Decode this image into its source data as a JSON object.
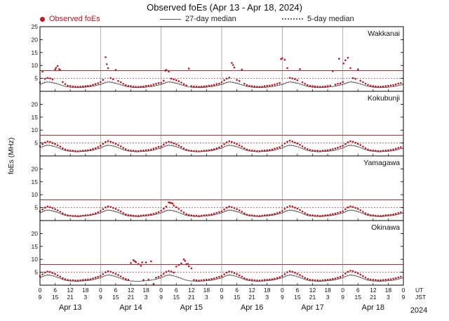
{
  "title": "Observed foEs (Apr 13 - Apr 18, 2024)",
  "legend": {
    "observed": "Observed foEs",
    "median27": "27-day median",
    "median5": "5-day median"
  },
  "y_axis": {
    "label": "foEs (MHz)",
    "min": 0,
    "max": 25,
    "ticks": [
      5,
      10,
      15,
      20,
      25
    ]
  },
  "x_axis": {
    "hours_per_day": 24,
    "minor_tick_hours": 6,
    "day_ticks_ut": [
      "0",
      "6",
      "12",
      "18"
    ],
    "day_ticks_jst": [
      "9",
      "15",
      "21",
      "3"
    ],
    "end_tick_ut": "0",
    "end_tick_jst": "9",
    "ut_label": "UT",
    "jst_label": "JST",
    "dates": [
      "Apr 13",
      "Apr 14",
      "Apr 15",
      "Apr 16",
      "Apr 17",
      "Apr 18"
    ],
    "year": "2024"
  },
  "colors": {
    "observed": "#c41420",
    "median27": "#333333",
    "median5": "#555555",
    "threshold_solid": "#aa3333",
    "threshold_dotted": "#cc2222",
    "grid": "#999999",
    "axis": "#000000"
  },
  "chart_data": {
    "type": "scatter",
    "title": "Observed foEs (Apr 13 - Apr 18, 2024)",
    "ylabel": "foEs (MHz)",
    "ylim": [
      0,
      25
    ],
    "xlim_hours": [
      0,
      144
    ],
    "time_start_ut": "Apr 13 00:00 UT",
    "thresholds_mhz": {
      "solid": 8,
      "dotted": 5
    },
    "stations": [
      {
        "name": "Wakkanai",
        "observed_hourly": [
          3.4,
          7.6,
          4.8,
          5.2,
          5.0,
          4.6,
          8.5,
          9.8,
          8.2,
          3.6,
          2.8,
          2.2,
          2.0,
          1.9,
          1.8,
          1.7,
          1.8,
          1.9,
          2.0,
          2.1,
          2.2,
          2.5,
          2.8,
          3.1,
          3.6,
          4.4,
          13.2,
          9.0,
          5.1,
          4.7,
          8.3,
          4.0,
          3.5,
          2.9,
          2.4,
          2.1,
          2.0,
          1.8,
          1.7,
          1.7,
          1.8,
          1.9,
          2.1,
          2.2,
          2.3,
          2.6,
          2.9,
          3.2,
          3.3,
          4.1,
          8.3,
          7.6,
          4.9,
          4.6,
          4.3,
          3.9,
          3.4,
          2.8,
          2.3,
          8.8,
          2.0,
          1.9,
          1.8,
          1.7,
          1.8,
          1.9,
          2.0,
          2.2,
          2.3,
          2.5,
          2.8,
          3.0,
          3.5,
          4.3,
          4.9,
          5.3,
          11.0,
          9.2,
          4.4,
          4.0,
          8.4,
          2.9,
          2.4,
          2.1,
          2.0,
          1.9,
          1.8,
          1.7,
          1.8,
          2.0,
          2.1,
          2.2,
          2.4,
          2.6,
          2.9,
          3.2,
          12.8,
          12.2,
          9.0,
          5.2,
          5.0,
          4.7,
          4.3,
          8.6,
          3.5,
          2.9,
          2.4,
          2.1,
          2.0,
          1.9,
          1.8,
          1.7,
          1.8,
          1.9,
          2.0,
          2.2,
          7.8,
          2.6,
          2.9,
          3.1,
          3.6,
          12.0,
          13.0,
          9.0,
          5.1,
          4.8,
          8.5,
          4.1,
          3.6,
          3.0,
          2.5,
          2.2,
          2.0,
          1.9,
          1.8,
          1.8,
          1.9,
          2.0,
          2.1,
          2.3,
          2.4,
          2.7,
          3.0,
          3.2
        ],
        "spikes": [
          [
            6.4,
            9.1
          ],
          [
            7.6,
            8.6
          ],
          [
            26.5,
            10.5
          ],
          [
            49.7,
            8.0
          ],
          [
            76.5,
            10.2
          ],
          [
            95.5,
            12.5
          ],
          [
            118.5,
            12.6
          ],
          [
            120.3,
            10.8
          ]
        ],
        "median27_profile": [
          2.6,
          3.0,
          3.4,
          3.6,
          3.5,
          3.3,
          3.1,
          2.8,
          2.5,
          2.2,
          1.9,
          1.7,
          1.6,
          1.5,
          1.5,
          1.4,
          1.5,
          1.5,
          1.6,
          1.7,
          1.8,
          2.0,
          2.2,
          2.4
        ],
        "median5_profile": [
          2.9,
          3.3,
          3.7,
          3.9,
          3.8,
          3.6,
          3.3,
          3.0,
          2.7,
          2.3,
          2.0,
          1.8,
          1.7,
          1.6,
          1.5,
          1.5,
          1.6,
          1.6,
          1.7,
          1.8,
          1.9,
          2.1,
          2.3,
          2.6
        ]
      },
      {
        "name": "Kokubunji",
        "observed_hourly": [
          3.8,
          4.5,
          5.2,
          5.6,
          5.4,
          5.0,
          4.6,
          4.1,
          3.6,
          3.0,
          2.5,
          2.2,
          2.1,
          2.0,
          1.9,
          1.8,
          1.9,
          2.0,
          2.1,
          2.2,
          2.4,
          2.7,
          3.0,
          3.4,
          3.9,
          4.7,
          5.4,
          5.8,
          5.5,
          5.1,
          4.7,
          4.2,
          3.7,
          3.1,
          2.6,
          2.2,
          2.1,
          2.0,
          1.9,
          1.9,
          2.0,
          2.1,
          2.2,
          2.3,
          2.5,
          2.8,
          3.1,
          3.5,
          3.7,
          4.4,
          5.1,
          5.5,
          5.3,
          4.9,
          4.5,
          4.0,
          3.5,
          2.9,
          2.4,
          2.1,
          2.0,
          1.9,
          1.9,
          1.8,
          1.9,
          2.0,
          2.1,
          2.2,
          2.4,
          2.6,
          2.9,
          3.3,
          3.8,
          4.6,
          5.3,
          5.7,
          5.4,
          5.0,
          4.6,
          4.1,
          3.6,
          3.0,
          2.5,
          2.2,
          2.1,
          2.0,
          1.9,
          1.9,
          2.0,
          2.1,
          2.2,
          2.3,
          2.5,
          2.8,
          3.1,
          3.4,
          4.0,
          4.8,
          5.5,
          5.9,
          5.6,
          5.2,
          4.8,
          4.3,
          3.7,
          3.1,
          2.6,
          2.3,
          2.1,
          2.0,
          2.0,
          1.9,
          2.0,
          2.1,
          2.2,
          2.4,
          2.6,
          2.9,
          3.2,
          3.6,
          3.9,
          4.6,
          5.3,
          5.7,
          5.5,
          5.1,
          4.7,
          4.2,
          3.6,
          3.0,
          2.5,
          2.2,
          2.1,
          2.0,
          1.9,
          1.9,
          2.0,
          2.1,
          2.2,
          2.3,
          2.5,
          2.8,
          3.1,
          3.4
        ],
        "spikes": [],
        "median27_profile": [
          3.0,
          3.5,
          3.9,
          4.1,
          4.0,
          3.8,
          3.5,
          3.2,
          2.8,
          2.4,
          2.1,
          1.9,
          1.8,
          1.7,
          1.6,
          1.6,
          1.7,
          1.7,
          1.8,
          1.9,
          2.0,
          2.2,
          2.5,
          2.8
        ],
        "median5_profile": [
          3.2,
          3.7,
          4.1,
          4.3,
          4.2,
          4.0,
          3.7,
          3.3,
          2.9,
          2.5,
          2.2,
          2.0,
          1.8,
          1.7,
          1.7,
          1.6,
          1.7,
          1.8,
          1.9,
          2.0,
          2.1,
          2.3,
          2.6,
          2.9
        ]
      },
      {
        "name": "Yamagawa",
        "observed_hourly": [
          3.6,
          4.3,
          5.0,
          5.4,
          5.2,
          4.8,
          4.4,
          3.9,
          3.4,
          2.8,
          2.3,
          2.0,
          1.9,
          1.8,
          1.8,
          1.7,
          1.8,
          1.9,
          2.0,
          2.1,
          2.3,
          2.5,
          2.8,
          3.2,
          3.7,
          4.4,
          5.1,
          5.5,
          5.3,
          4.9,
          4.5,
          4.0,
          3.5,
          2.9,
          2.4,
          2.1,
          2.0,
          1.9,
          1.8,
          1.8,
          1.9,
          2.0,
          2.1,
          2.2,
          2.4,
          2.6,
          2.9,
          3.3,
          3.8,
          4.6,
          5.4,
          7.0,
          6.8,
          5.8,
          5.2,
          4.5,
          3.8,
          3.1,
          2.5,
          2.2,
          2.0,
          1.9,
          1.9,
          1.8,
          1.9,
          2.0,
          2.1,
          2.2,
          2.4,
          2.7,
          3.0,
          3.3,
          3.6,
          4.3,
          5.0,
          5.4,
          5.2,
          4.8,
          4.4,
          3.9,
          3.4,
          2.8,
          2.3,
          2.1,
          2.0,
          1.9,
          1.8,
          1.8,
          1.9,
          2.0,
          2.1,
          2.2,
          2.3,
          2.6,
          2.9,
          3.2,
          3.7,
          4.5,
          5.2,
          5.6,
          5.4,
          5.0,
          4.6,
          4.1,
          3.5,
          2.9,
          2.4,
          2.1,
          2.0,
          1.9,
          1.9,
          1.8,
          1.9,
          2.0,
          2.1,
          2.3,
          2.5,
          2.7,
          3.0,
          3.3,
          3.6,
          4.4,
          5.1,
          5.5,
          5.3,
          4.9,
          4.5,
          4.0,
          3.4,
          2.8,
          2.4,
          2.1,
          2.0,
          1.9,
          1.8,
          1.8,
          1.9,
          2.0,
          2.1,
          2.2,
          2.4,
          2.6,
          2.9,
          3.2
        ],
        "spikes": [
          [
            51.5,
            6.9
          ],
          [
            52.6,
            6.6
          ]
        ],
        "median27_profile": [
          2.9,
          3.4,
          3.8,
          4.0,
          3.9,
          3.7,
          3.4,
          3.1,
          2.7,
          2.3,
          2.0,
          1.8,
          1.7,
          1.6,
          1.6,
          1.5,
          1.6,
          1.7,
          1.8,
          1.9,
          2.0,
          2.2,
          2.4,
          2.7
        ],
        "median5_profile": [
          3.1,
          3.6,
          4.0,
          4.2,
          4.1,
          3.9,
          3.6,
          3.2,
          2.8,
          2.4,
          2.1,
          1.9,
          1.8,
          1.7,
          1.6,
          1.6,
          1.7,
          1.8,
          1.9,
          2.0,
          2.1,
          2.3,
          2.5,
          2.8
        ]
      },
      {
        "name": "Okinawa",
        "observed_hourly": [
          3.5,
          4.2,
          4.9,
          5.3,
          5.1,
          4.7,
          4.3,
          3.8,
          3.3,
          2.7,
          2.3,
          2.0,
          1.9,
          1.9,
          1.8,
          1.8,
          1.9,
          2.0,
          2.1,
          2.2,
          2.3,
          2.6,
          2.9,
          3.2,
          3.6,
          4.3,
          5.0,
          5.4,
          5.2,
          4.8,
          4.4,
          3.9,
          3.4,
          2.8,
          2.4,
          2.1,
          8.6,
          9.7,
          8.9,
          8.2,
          7.5,
          2.0,
          8.8,
          2.2,
          9.2,
          0.5,
          2.9,
          3.2,
          3.7,
          4.4,
          5.1,
          5.5,
          5.3,
          4.9,
          7.2,
          7.8,
          8.4,
          10.0,
          8.1,
          7.3,
          6.5,
          2.0,
          1.9,
          1.8,
          1.9,
          2.0,
          2.1,
          2.2,
          2.4,
          2.6,
          2.9,
          3.2,
          3.5,
          4.2,
          4.9,
          5.3,
          5.1,
          4.7,
          4.3,
          3.8,
          3.3,
          2.7,
          2.3,
          2.1,
          2.0,
          1.9,
          1.8,
          1.8,
          1.9,
          2.0,
          2.1,
          2.2,
          2.3,
          2.5,
          2.8,
          3.1,
          3.6,
          4.3,
          5.0,
          5.4,
          5.2,
          4.8,
          4.4,
          3.9,
          3.4,
          2.8,
          2.4,
          2.1,
          2.0,
          1.9,
          1.9,
          1.8,
          1.9,
          2.0,
          2.1,
          2.2,
          2.4,
          2.6,
          2.9,
          3.2,
          3.7,
          4.5,
          5.2,
          5.6,
          5.4,
          5.0,
          4.6,
          4.1,
          3.5,
          2.9,
          2.4,
          2.2,
          2.1,
          2.0,
          1.9,
          1.9,
          2.0,
          2.1,
          2.2,
          2.3,
          2.5,
          2.7,
          3.0,
          3.3
        ],
        "spikes": [
          [
            37.5,
            9.3
          ],
          [
            40.5,
            8.8
          ],
          [
            57.5,
            9.4
          ],
          [
            58.6,
            8.2
          ]
        ],
        "median27_profile": [
          2.8,
          3.3,
          3.7,
          3.9,
          3.8,
          3.6,
          3.3,
          3.0,
          2.6,
          2.2,
          1.9,
          1.7,
          1.6,
          1.6,
          1.5,
          1.5,
          1.6,
          1.6,
          1.7,
          1.8,
          1.9,
          2.1,
          2.3,
          2.6
        ],
        "median5_profile": [
          3.0,
          3.5,
          3.9,
          4.1,
          4.0,
          3.8,
          3.5,
          3.1,
          2.7,
          2.3,
          2.0,
          1.8,
          1.7,
          1.6,
          1.6,
          1.5,
          1.6,
          1.7,
          1.8,
          1.9,
          2.0,
          2.2,
          2.4,
          2.7
        ]
      }
    ]
  }
}
